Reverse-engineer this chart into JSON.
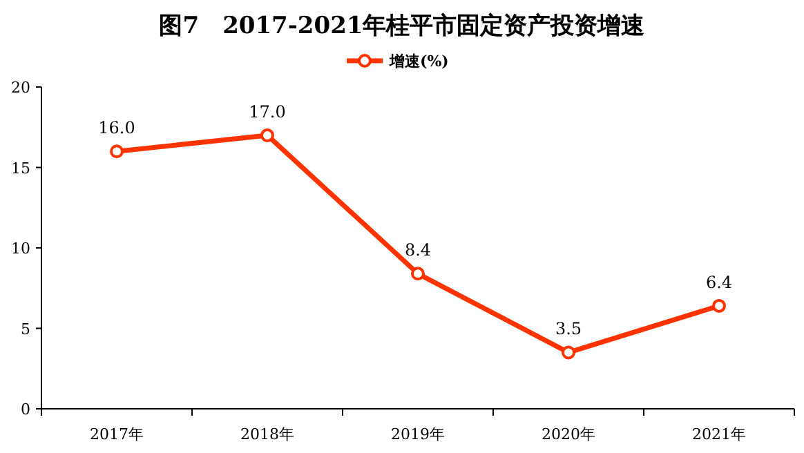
{
  "chart_data": {
    "type": "line",
    "title": "图7　2017-2021年桂平市固定资产投资增速",
    "categories": [
      "2017年",
      "2018年",
      "2019年",
      "2020年",
      "2021年"
    ],
    "series": [
      {
        "name": "增速(%)",
        "color": "#ff3300",
        "values": [
          16.0,
          17.0,
          8.4,
          3.5,
          6.4
        ],
        "value_labels": [
          "16.0",
          "17.0",
          "8.4",
          "3.5",
          "6.4"
        ]
      }
    ],
    "ylim": [
      0,
      20
    ],
    "yticks": [
      0,
      5,
      10,
      15,
      20
    ],
    "legend": "top",
    "marker": "circle",
    "line_style": "solid",
    "grid": false
  }
}
